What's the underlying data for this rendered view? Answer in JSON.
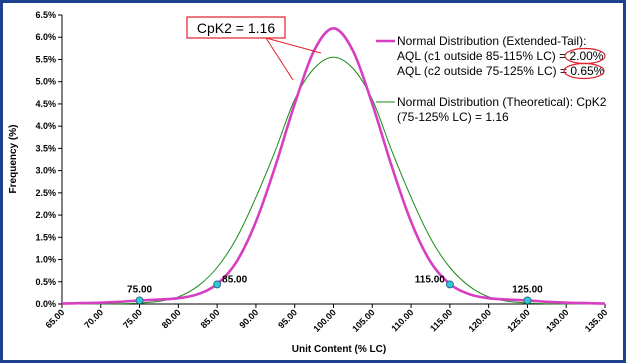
{
  "chart_data": {
    "type": "line",
    "xlabel": "Unit Content (% LC)",
    "ylabel": "Frequency (%)",
    "xlim": [
      65,
      135
    ],
    "ylim": [
      0,
      6.5
    ],
    "x_ticks": [
      "65.00",
      "70.00",
      "75.00",
      "80.00",
      "85.00",
      "90.00",
      "95.00",
      "100.00",
      "105.00",
      "110.00",
      "115.00",
      "120.00",
      "125.00",
      "130.00",
      "135.00"
    ],
    "y_ticks": [
      "0.0%",
      "0.5%",
      "1.0%",
      "1.5%",
      "2.0%",
      "2.5%",
      "3.0%",
      "3.5%",
      "4.0%",
      "4.5%",
      "5.0%",
      "5.5%",
      "6.0%",
      "6.5%"
    ],
    "grid": false,
    "legend_position": "top-right",
    "callout": "CpK2 = 1.16",
    "series": [
      {
        "name": "Normal Distribution (Extended-Tail):",
        "name_lines": [
          "Normal Distribution (Extended-Tail):"
        ],
        "aql_lines": [
          {
            "text": "AQL (c1 outside 85-115% LC) = ",
            "value": "2.00%"
          },
          {
            "text": "AQL (c2 outside 75-125% LC) = ",
            "value": "0.65%"
          }
        ],
        "color": "#d63fc2",
        "x": [
          65,
          67.5,
          70,
          72.5,
          75,
          77.5,
          80,
          82.5,
          85,
          87.5,
          90,
          92.5,
          95,
          97.5,
          100,
          102.5,
          105,
          107.5,
          110,
          112.5,
          115,
          117.5,
          120,
          122.5,
          125,
          127.5,
          130,
          132.5,
          135
        ],
        "y": [
          0.01,
          0.02,
          0.03,
          0.05,
          0.08,
          0.1,
          0.13,
          0.22,
          0.45,
          0.95,
          1.85,
          3.1,
          4.5,
          5.7,
          6.2,
          5.7,
          4.5,
          3.1,
          1.85,
          0.95,
          0.45,
          0.22,
          0.13,
          0.1,
          0.08,
          0.05,
          0.03,
          0.02,
          0.01
        ]
      },
      {
        "name": "Normal Distribution (Theoretical): CpK2 (75-125% LC) = 1.16",
        "name_lines": [
          "Normal Distribution (Theoretical): CpK2",
          "(75-125% LC) = 1.16"
        ],
        "color": "#1a8a1a",
        "x": [
          65,
          67.5,
          70,
          72.5,
          75,
          77.5,
          80,
          82.5,
          85,
          87.5,
          90,
          92.5,
          95,
          97.5,
          100,
          102.5,
          105,
          107.5,
          110,
          112.5,
          115,
          117.5,
          120,
          122.5,
          125,
          127.5,
          130,
          132.5,
          135
        ],
        "y": [
          0,
          0,
          0.001,
          0.005,
          0.02,
          0.06,
          0.16,
          0.4,
          0.82,
          1.48,
          2.4,
          3.45,
          4.6,
          5.3,
          5.55,
          5.3,
          4.6,
          3.45,
          2.4,
          1.48,
          0.82,
          0.4,
          0.16,
          0.06,
          0.02,
          0.005,
          0.001,
          0,
          0
        ]
      }
    ],
    "markers": [
      {
        "x": 75,
        "y": 0.08,
        "label": "75.00"
      },
      {
        "x": 85,
        "y": 0.44,
        "label": "85.00"
      },
      {
        "x": 115,
        "y": 0.44,
        "label": "115.00"
      },
      {
        "x": 125,
        "y": 0.08,
        "label": "125.00"
      }
    ],
    "marker_color": "#33c6d6"
  }
}
